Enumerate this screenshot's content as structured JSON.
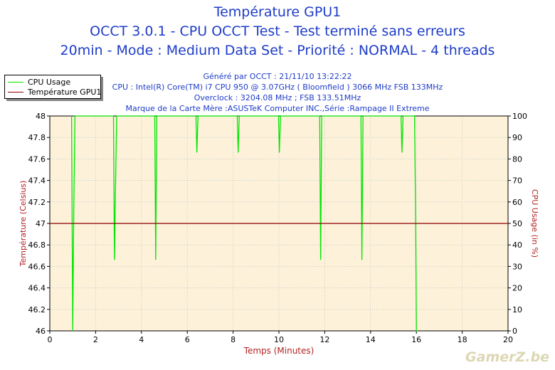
{
  "chart_data": {
    "type": "line",
    "title_lines": [
      "Température GPU1",
      "OCCT 3.0.1 - CPU OCCT Test - Test terminé sans erreurs",
      "20min - Mode : Medium Data Set - Priorité : NORMAL - 4 threads"
    ],
    "info_lines": [
      "Généré par OCCT : 21/11/10 13:22:22",
      "CPU : Intel(R) Core(TM) i7 CPU 950 @ 3.07GHz ( Bloomfield ) 3066 MHz FSB 133MHz",
      "Overclock : 3204.08 MHz ; FSB 133.51MHz",
      "Marque de la Carte Mère :ASUSTeK Computer INC.,Série :Rampage II Extreme"
    ],
    "xlabel": "Temps (Minutes)",
    "ylabel_left": "Température (Celsius)",
    "ylabel_right": "CPU Usage (in %)",
    "xlim": [
      0,
      20
    ],
    "ylim_left": [
      46,
      48
    ],
    "ylim_right": [
      0,
      100
    ],
    "x_ticks": [
      "0",
      "2",
      "4",
      "6",
      "8",
      "10",
      "12",
      "14",
      "16",
      "18",
      "20"
    ],
    "y_left_ticks": [
      "46",
      "46.2",
      "46.4",
      "46.6",
      "46.8",
      "47",
      "47.2",
      "47.4",
      "47.6",
      "47.8",
      "48"
    ],
    "y_right_ticks": [
      "0",
      "10",
      "20",
      "30",
      "40",
      "50",
      "60",
      "70",
      "80",
      "90",
      "100"
    ],
    "grid": true,
    "legend_position": "top-left",
    "series": [
      {
        "name": "CPU Usage",
        "axis": "right",
        "color": "#00e600",
        "x": [
          0.95,
          1.0,
          1.05,
          1.1,
          2.78,
          2.82,
          2.87,
          2.92,
          4.58,
          4.62,
          4.67,
          6.38,
          6.42,
          6.47,
          8.18,
          8.22,
          8.27,
          9.98,
          10.02,
          10.07,
          11.78,
          11.82,
          11.87,
          13.58,
          13.62,
          13.67,
          15.33,
          15.37,
          15.42,
          15.5,
          15.92,
          15.97,
          16.0,
          16.05
        ],
        "y": [
          100,
          0,
          60,
          100,
          100,
          33,
          68,
          100,
          100,
          33,
          100,
          100,
          83,
          100,
          100,
          83,
          100,
          100,
          83,
          100,
          100,
          33,
          100,
          100,
          33,
          100,
          100,
          83,
          100,
          100,
          100,
          50,
          0,
          0
        ]
      },
      {
        "name": "Température GPU1",
        "axis": "left",
        "color": "#8b0000",
        "x": [
          0,
          20
        ],
        "y": [
          47,
          47
        ]
      }
    ]
  },
  "legend": {
    "cpu_label": "CPU Usage",
    "temp_label": "Température GPU1",
    "cpu_color": "#00e600",
    "temp_color": "#8b0000"
  },
  "brand": "GamerZ.be"
}
